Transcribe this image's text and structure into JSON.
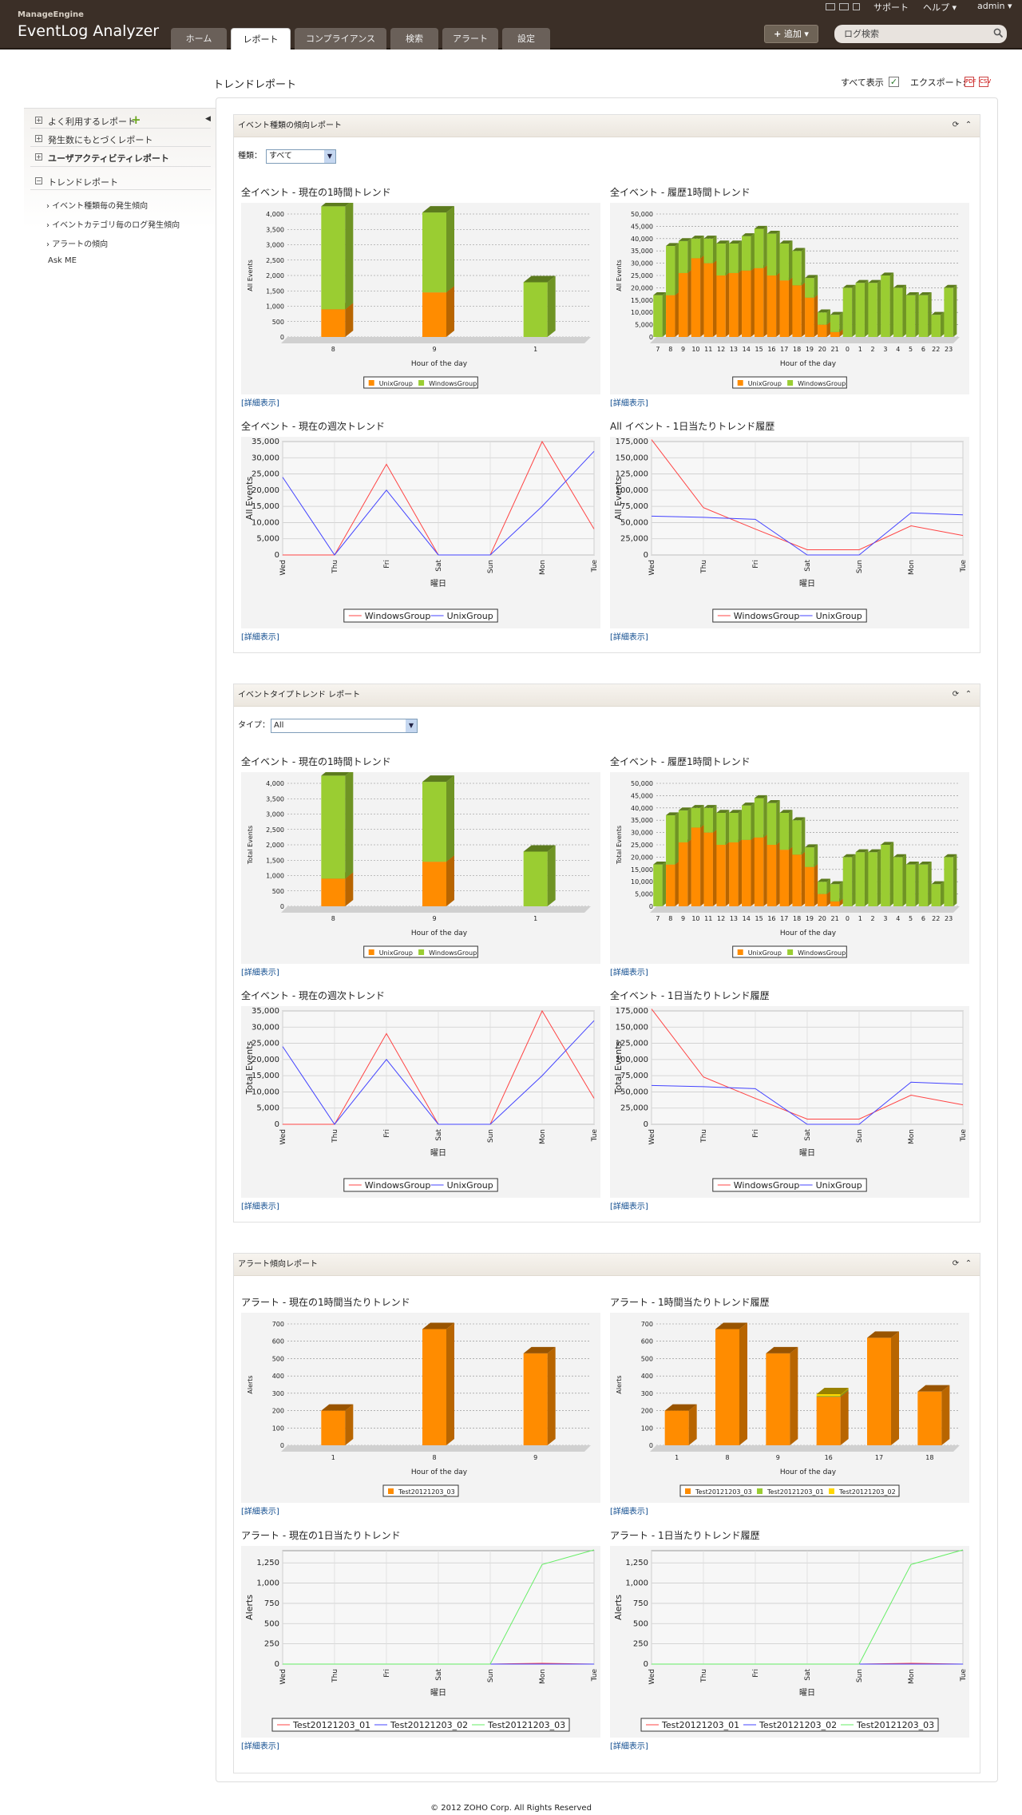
{
  "header": {
    "brand_small": "ManageEngine",
    "brand": "EventLog Analyzer",
    "tabs": [
      "ホーム",
      "レポート",
      "コンプライアンス",
      "検索",
      "アラート",
      "設定"
    ],
    "links": [
      "サポート",
      "ヘルプ",
      "admin"
    ],
    "add_label": "追加",
    "search_placeholder": "ログ検索"
  },
  "page": {
    "title": "トレンドレポート",
    "show_all": "すべて表示",
    "export": "エクスポート:",
    "pdf": "PDF",
    "csv": "CSV"
  },
  "sidebar": {
    "items": [
      "よく利用するレポート",
      "発生数にもとづくレポート",
      "ユーザアクティビティレポート",
      "トレンドレポート"
    ],
    "sub": [
      "イベント種類毎の発生傾向",
      "イベントカテゴリ毎のログ発生傾向",
      "アラートの傾向"
    ],
    "askme": "Ask ME"
  },
  "common": {
    "detail": "[詳細表示]"
  },
  "sections": [
    {
      "title": "イベント種類の傾向レポート",
      "filter_label": "種類：",
      "filter_value": "すべて",
      "chart_titles": [
        "全イベント - 現在の1時間トレンド",
        "全イベント - 履歴1時間トレンド",
        "全イベント - 現在の週次トレンド",
        "All イベント - 1日当たりトレンド履歴"
      ]
    },
    {
      "title": "イベントタイプトレンド レポート",
      "filter_label": "タイプ：",
      "filter_value": "All",
      "chart_titles": [
        "全イベント - 現在の1時間トレンド",
        "全イベント - 履歴1時間トレンド",
        "全イベント - 現在の週次トレンド",
        "全イベント - 1日当たりトレンド履歴"
      ]
    },
    {
      "title": "アラート傾向レポート",
      "chart_titles": [
        "アラート - 現在の1時間当たりトレンド",
        "アラート - 1時間当たりトレンド履歴",
        "アラート - 現在の1日当たりトレンド",
        "アラート - 1日当たりトレンド履歴"
      ]
    }
  ],
  "colors": {
    "unix": "#ff8c00",
    "windows": "#9acd32",
    "windows_line": "#ff4444",
    "unix_line": "#4444ff",
    "alert1": "#ff4444",
    "alert2": "#4444ff",
    "alert3": "#66ee66",
    "alert_yellow": "#ffd700"
  },
  "footer": "© 2012 ZOHO Corp. All Rights Reserved",
  "chart_data": [
    {
      "id": "s0c0",
      "type": "bar",
      "stacked": true,
      "ylabel": "All Events",
      "xlabel": "Hour of the day",
      "ylim": [
        0,
        4000
      ],
      "yticks": [
        0,
        500,
        1000,
        1500,
        2000,
        2500,
        3000,
        3500,
        4000
      ],
      "categories": [
        "8",
        "9",
        "1"
      ],
      "series": [
        {
          "name": "UnixGroup",
          "color": "#ff8c00",
          "values": [
            900,
            1450,
            0
          ]
        },
        {
          "name": "WindowsGroup",
          "color": "#9acd32",
          "values": [
            3350,
            2600,
            1780
          ]
        }
      ]
    },
    {
      "id": "s0c1",
      "type": "bar",
      "stacked": true,
      "ylabel": "All Events",
      "xlabel": "Hour of the day",
      "ylim": [
        0,
        50000
      ],
      "yticks": [
        0,
        5000,
        10000,
        15000,
        20000,
        25000,
        30000,
        35000,
        40000,
        45000,
        50000
      ],
      "categories": [
        "7",
        "8",
        "9",
        "10",
        "11",
        "12",
        "13",
        "14",
        "15",
        "16",
        "17",
        "18",
        "19",
        "20",
        "21",
        "0",
        "1",
        "2",
        "3",
        "4",
        "5",
        "6",
        "22",
        "23"
      ],
      "series": [
        {
          "name": "UnixGroup",
          "color": "#ff8c00",
          "values": [
            0,
            17000,
            26000,
            32000,
            30000,
            25000,
            26000,
            27000,
            28000,
            25000,
            23000,
            21000,
            16000,
            5000,
            2000,
            0,
            0,
            0,
            0,
            0,
            0,
            0,
            0,
            0
          ]
        },
        {
          "name": "WindowsGroup",
          "color": "#9acd32",
          "values": [
            17000,
            20000,
            13000,
            8000,
            10000,
            13000,
            12000,
            14000,
            16000,
            17000,
            15000,
            14000,
            8000,
            5000,
            7000,
            20000,
            22000,
            22000,
            25000,
            20000,
            17000,
            17000,
            9000,
            20000
          ]
        }
      ]
    },
    {
      "id": "s0c2",
      "type": "line",
      "ylabel": "All Events",
      "xlabel": "曜日",
      "ylim": [
        0,
        35000
      ],
      "yticks": [
        0,
        5000,
        10000,
        15000,
        20000,
        25000,
        30000,
        35000
      ],
      "categories": [
        "Wed",
        "Thu",
        "Fri",
        "Sat",
        "Sun",
        "Mon",
        "Tue"
      ],
      "series": [
        {
          "name": "WindowsGroup",
          "color": "#ff4444",
          "values": [
            0,
            0,
            28000,
            0,
            0,
            35000,
            8000
          ]
        },
        {
          "name": "UnixGroup",
          "color": "#4444ff",
          "values": [
            24000,
            0,
            20000,
            0,
            0,
            15000,
            32000
          ]
        }
      ]
    },
    {
      "id": "s0c3",
      "type": "line",
      "ylabel": "All Events",
      "xlabel": "曜日",
      "ylim": [
        0,
        175000
      ],
      "yticks": [
        0,
        25000,
        50000,
        75000,
        100000,
        125000,
        150000,
        175000
      ],
      "categories": [
        "Wed",
        "Thu",
        "Fri",
        "Sat",
        "Sun",
        "Mon",
        "Tue"
      ],
      "series": [
        {
          "name": "WindowsGroup",
          "color": "#ff4444",
          "values": [
            178000,
            73000,
            40000,
            8000,
            8000,
            45000,
            30000
          ]
        },
        {
          "name": "UnixGroup",
          "color": "#4444ff",
          "values": [
            60000,
            58000,
            55000,
            0,
            0,
            65000,
            62000
          ]
        }
      ]
    },
    {
      "id": "s1c0",
      "type": "bar",
      "stacked": true,
      "ylabel": "Total Events",
      "xlabel": "Hour of the day",
      "ylim": [
        0,
        4000
      ],
      "yticks": [
        0,
        500,
        1000,
        1500,
        2000,
        2500,
        3000,
        3500,
        4000
      ],
      "categories": [
        "8",
        "9",
        "1"
      ],
      "series": [
        {
          "name": "UnixGroup",
          "color": "#ff8c00",
          "values": [
            900,
            1450,
            0
          ]
        },
        {
          "name": "WindowsGroup",
          "color": "#9acd32",
          "values": [
            3350,
            2600,
            1780
          ]
        }
      ]
    },
    {
      "id": "s1c1",
      "type": "bar",
      "stacked": true,
      "ylabel": "Total Events",
      "xlabel": "Hour of the day",
      "ylim": [
        0,
        50000
      ],
      "yticks": [
        0,
        5000,
        10000,
        15000,
        20000,
        25000,
        30000,
        35000,
        40000,
        45000,
        50000
      ],
      "categories": [
        "7",
        "8",
        "9",
        "10",
        "11",
        "12",
        "13",
        "14",
        "15",
        "16",
        "17",
        "18",
        "19",
        "20",
        "21",
        "0",
        "1",
        "2",
        "3",
        "4",
        "5",
        "6",
        "22",
        "23"
      ],
      "series": [
        {
          "name": "UnixGroup",
          "color": "#ff8c00",
          "values": [
            0,
            17000,
            26000,
            32000,
            30000,
            25000,
            26000,
            27000,
            28000,
            25000,
            23000,
            21000,
            16000,
            5000,
            2000,
            0,
            0,
            0,
            0,
            0,
            0,
            0,
            0,
            0
          ]
        },
        {
          "name": "WindowsGroup",
          "color": "#9acd32",
          "values": [
            17000,
            20000,
            13000,
            8000,
            10000,
            13000,
            12000,
            14000,
            16000,
            17000,
            15000,
            14000,
            8000,
            5000,
            7000,
            20000,
            22000,
            22000,
            25000,
            20000,
            17000,
            17000,
            9000,
            20000
          ]
        }
      ]
    },
    {
      "id": "s1c2",
      "type": "line",
      "ylabel": "Total Events",
      "xlabel": "曜日",
      "ylim": [
        0,
        35000
      ],
      "yticks": [
        0,
        5000,
        10000,
        15000,
        20000,
        25000,
        30000,
        35000
      ],
      "categories": [
        "Wed",
        "Thu",
        "Fri",
        "Sat",
        "Sun",
        "Mon",
        "Tue"
      ],
      "series": [
        {
          "name": "WindowsGroup",
          "color": "#ff4444",
          "values": [
            0,
            0,
            28000,
            0,
            0,
            35000,
            8000
          ]
        },
        {
          "name": "UnixGroup",
          "color": "#4444ff",
          "values": [
            24000,
            0,
            20000,
            0,
            0,
            15000,
            32000
          ]
        }
      ]
    },
    {
      "id": "s1c3",
      "type": "line",
      "ylabel": "Total Events",
      "xlabel": "曜日",
      "ylim": [
        0,
        175000
      ],
      "yticks": [
        0,
        25000,
        50000,
        75000,
        100000,
        125000,
        150000,
        175000
      ],
      "categories": [
        "Wed",
        "Thu",
        "Fri",
        "Sat",
        "Sun",
        "Mon",
        "Tue"
      ],
      "series": [
        {
          "name": "WindowsGroup",
          "color": "#ff4444",
          "values": [
            178000,
            73000,
            40000,
            8000,
            8000,
            45000,
            30000
          ]
        },
        {
          "name": "UnixGroup",
          "color": "#4444ff",
          "values": [
            60000,
            58000,
            55000,
            0,
            0,
            65000,
            62000
          ]
        }
      ]
    },
    {
      "id": "s2c0",
      "type": "bar",
      "stacked": true,
      "ylabel": "Alerts",
      "xlabel": "Hour of the day",
      "ylim": [
        0,
        700
      ],
      "yticks": [
        0,
        100,
        200,
        300,
        400,
        500,
        600,
        700
      ],
      "categories": [
        "1",
        "8",
        "9"
      ],
      "series": [
        {
          "name": "Test20121203_03",
          "color": "#ff8c00",
          "values": [
            200,
            670,
            530
          ]
        }
      ]
    },
    {
      "id": "s2c1",
      "type": "bar",
      "stacked": true,
      "ylabel": "Alerts",
      "xlabel": "Hour of the day",
      "ylim": [
        0,
        700
      ],
      "yticks": [
        0,
        100,
        200,
        300,
        400,
        500,
        600,
        700
      ],
      "categories": [
        "1",
        "8",
        "9",
        "16",
        "17",
        "18"
      ],
      "series": [
        {
          "name": "Test20121203_03",
          "color": "#ff8c00",
          "values": [
            200,
            670,
            530,
            280,
            620,
            310
          ]
        },
        {
          "name": "Test20121203_01",
          "color": "#9acd32",
          "values": [
            0,
            0,
            0,
            5,
            0,
            0
          ]
        },
        {
          "name": "Test20121203_02",
          "color": "#ffd700",
          "values": [
            0,
            0,
            0,
            10,
            0,
            0
          ]
        }
      ]
    },
    {
      "id": "s2c2",
      "type": "line",
      "ylabel": "Alerts",
      "xlabel": "曜日",
      "ylim": [
        0,
        1400
      ],
      "yticks": [
        0,
        250,
        500,
        750,
        1000,
        1250
      ],
      "categories": [
        "Wed",
        "Thu",
        "Fri",
        "Sat",
        "Sun",
        "Mon",
        "Tue"
      ],
      "series": [
        {
          "name": "Test20121203_01",
          "color": "#ff4444",
          "values": [
            0,
            0,
            0,
            0,
            0,
            10,
            0
          ]
        },
        {
          "name": "Test20121203_02",
          "color": "#4444ff",
          "values": [
            0,
            0,
            0,
            0,
            0,
            0,
            0
          ]
        },
        {
          "name": "Test20121203_03",
          "color": "#66ee66",
          "values": [
            0,
            0,
            0,
            0,
            0,
            1230,
            1410
          ]
        }
      ]
    },
    {
      "id": "s2c3",
      "type": "line",
      "ylabel": "Alerts",
      "xlabel": "曜日",
      "ylim": [
        0,
        1400
      ],
      "yticks": [
        0,
        250,
        500,
        750,
        1000,
        1250
      ],
      "categories": [
        "Wed",
        "Thu",
        "Fri",
        "Sat",
        "Sun",
        "Mon",
        "Tue"
      ],
      "series": [
        {
          "name": "Test20121203_01",
          "color": "#ff4444",
          "values": [
            0,
            0,
            0,
            0,
            0,
            10,
            0
          ]
        },
        {
          "name": "Test20121203_02",
          "color": "#4444ff",
          "values": [
            0,
            0,
            0,
            0,
            0,
            0,
            0
          ]
        },
        {
          "name": "Test20121203_03",
          "color": "#66ee66",
          "values": [
            0,
            0,
            0,
            0,
            0,
            1230,
            1410
          ]
        }
      ]
    }
  ]
}
